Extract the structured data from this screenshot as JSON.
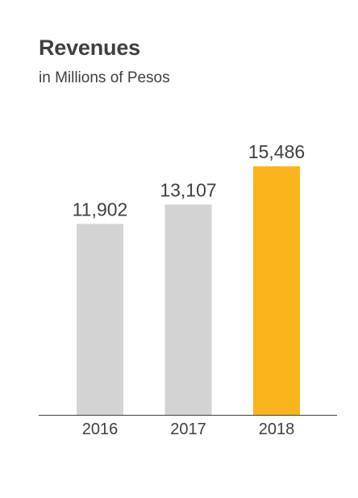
{
  "chart_data": {
    "type": "bar",
    "title": "Revenues",
    "subtitle": "in Millions of Pesos",
    "categories": [
      "2016",
      "2017",
      "2018"
    ],
    "series": [
      {
        "values": [
          11902,
          13107,
          15486
        ]
      }
    ],
    "data_labels": [
      "11,902",
      "13,107",
      "15,486"
    ],
    "colors": [
      "#d3d3d3",
      "#d3d3d3",
      "#fbb41b"
    ],
    "axis_color": "#404040",
    "ylim": [
      0,
      17100
    ],
    "grid": false,
    "legend": "none"
  }
}
